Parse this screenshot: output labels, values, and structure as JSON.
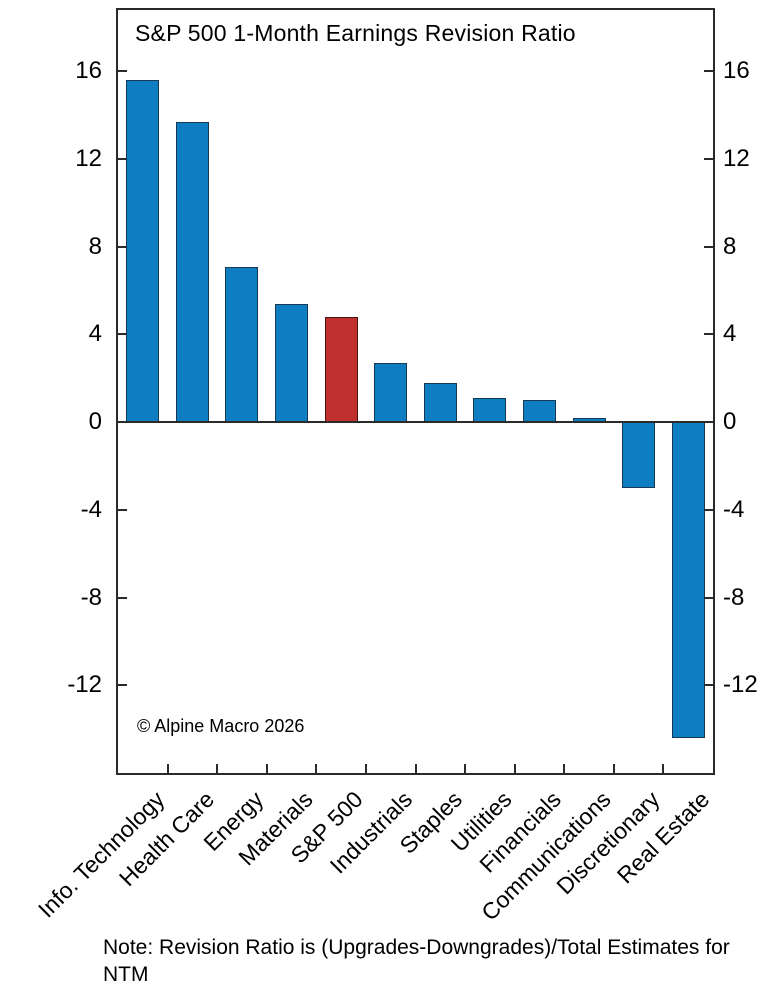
{
  "chart_data": {
    "type": "bar",
    "title": "S&P 500 1-Month Earnings Revision Ratio",
    "categories": [
      "Info. Technology",
      "Health Care",
      "Energy",
      "Materials",
      "S&P 500",
      "Industrials",
      "Staples",
      "Utilities",
      "Financials",
      "Communications",
      "Discretionary",
      "Real Estate"
    ],
    "values": [
      15.6,
      13.7,
      7.1,
      5.4,
      4.8,
      2.7,
      1.8,
      1.1,
      1.0,
      0.2,
      -3.0,
      -14.4
    ],
    "highlight_index": 4,
    "highlight_category": "S&P 500",
    "yticks": [
      16,
      12,
      8,
      4,
      0,
      -4,
      -8,
      -12
    ],
    "ylim": [
      -16,
      18.8
    ],
    "xlabel": "",
    "ylabel": "",
    "grid": false,
    "legend": "none",
    "dual_axis_labels": true,
    "colors": {
      "bar": "#0e7dc2",
      "bar_edge": "#163a54",
      "highlight_bar": "#c0302e",
      "highlight_edge": "#4a1210",
      "axis": "#2a2a2a",
      "text": "#000000",
      "background": "#ffffff"
    }
  },
  "annotations": {
    "copyright": "© Alpine Macro 2026",
    "note": "Note: Revision Ratio is (Upgrades-Downgrades)/Total Estimates for NTM"
  }
}
